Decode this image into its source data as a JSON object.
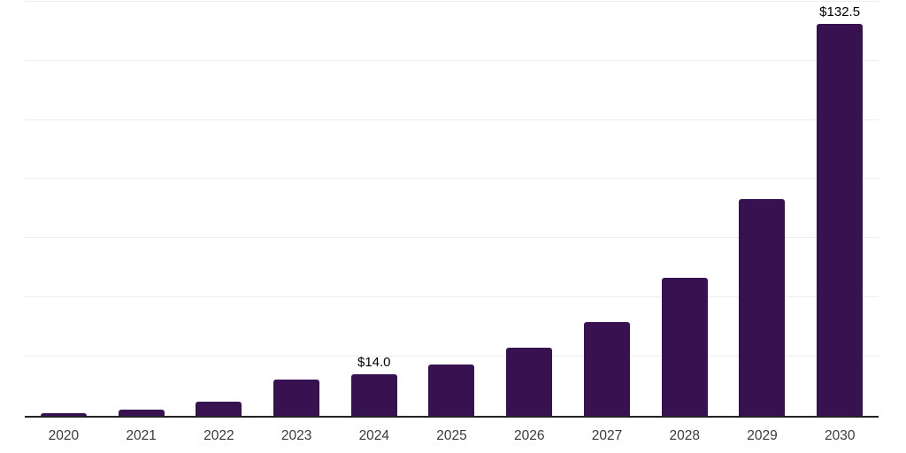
{
  "chart_data": {
    "type": "bar",
    "title": "",
    "xlabel": "",
    "ylabel": "",
    "categories": [
      "2020",
      "2021",
      "2022",
      "2023",
      "2024",
      "2025",
      "2026",
      "2027",
      "2028",
      "2029",
      "2030"
    ],
    "values": [
      1.0,
      2.1,
      4.9,
      12.3,
      14.0,
      17.3,
      23.1,
      31.8,
      46.7,
      73.2,
      132.5
    ],
    "data_labels": [
      "",
      "",
      "",
      "",
      "$14.0",
      "",
      "",
      "",
      "",
      "",
      "$132.5"
    ],
    "ylim": [
      0,
      140.5
    ],
    "gridline_values": [
      20,
      40,
      60,
      80,
      100,
      120,
      140
    ],
    "grid": "horizontal-only",
    "legend": "none",
    "y_tick_labels_shown": false
  },
  "colors": {
    "background": "#ffffff",
    "bar": "#371150",
    "gridline": "#ededed",
    "axis": "#222222",
    "tick_label": "#3a3a3a",
    "data_label": "#000000"
  }
}
